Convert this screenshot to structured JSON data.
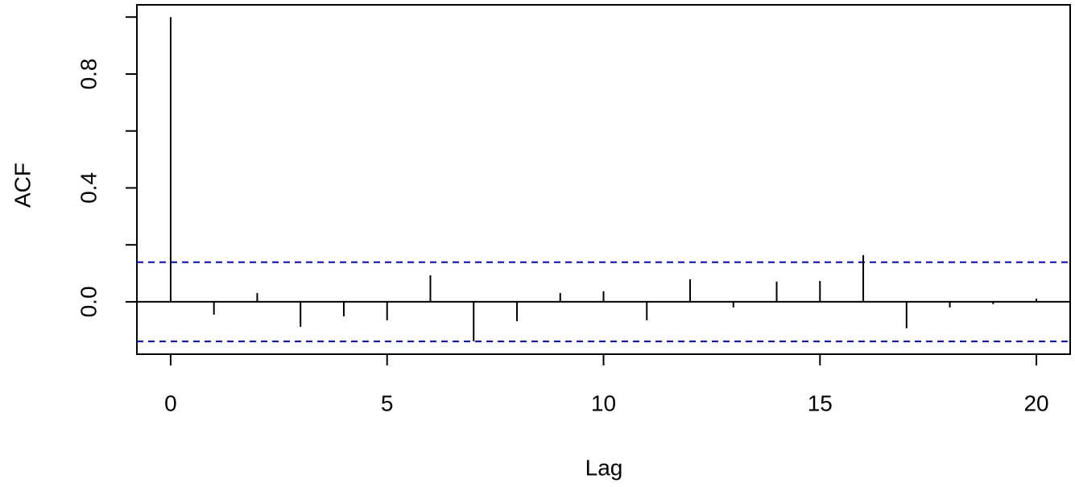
{
  "chart_data": {
    "type": "acf",
    "xlabel": "Lag",
    "ylabel": "ACF",
    "x": [
      0,
      1,
      2,
      3,
      4,
      5,
      6,
      7,
      8,
      9,
      10,
      11,
      12,
      13,
      14,
      15,
      16,
      17,
      18,
      19,
      20
    ],
    "values": [
      1,
      -0.045,
      0.031,
      -0.088,
      -0.051,
      -0.065,
      0.093,
      -0.139,
      -0.068,
      0.031,
      0.037,
      -0.065,
      0.079,
      -0.02,
      0.071,
      0.073,
      0.164,
      -0.093,
      -0.02,
      -0.008,
      0.011
    ],
    "color": "#000000",
    "ci_lines": [
      0.139,
      -0.139
    ],
    "ci_color": "#0000ff",
    "xlim": [
      -0.78,
      20.78
    ],
    "ylim": [
      -0.184,
      1.043
    ],
    "xticks": [
      0,
      5,
      10,
      15,
      20
    ],
    "yticks": [
      {
        "value": 0,
        "label": "0.0"
      },
      0.4,
      0.8
    ],
    "yminor_ticks": [
      0.2,
      0.6,
      1.0
    ],
    "zero_line": true
  }
}
